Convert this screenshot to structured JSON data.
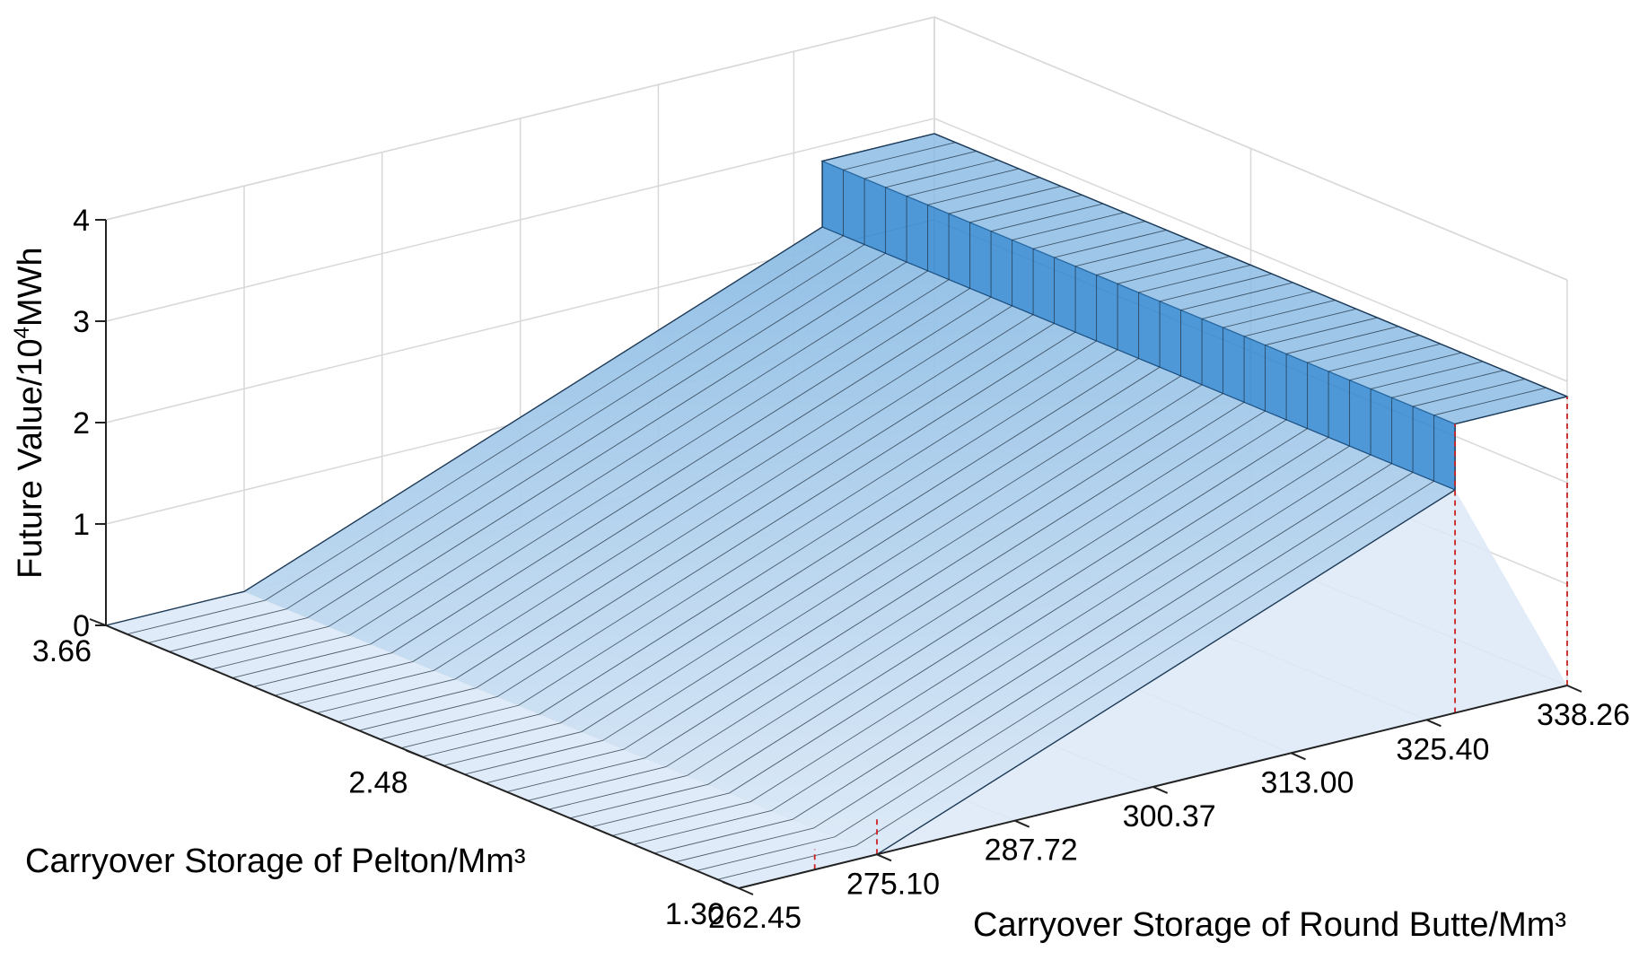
{
  "chart_data": {
    "type": "surface",
    "title": "",
    "xlabel": "Carryover Storage of Round Butte/Mm³",
    "ylabel": "Carryover Storage of Pelton/Mm³",
    "zlabel_base": "Future Value/10",
    "zlabel_sup": "4",
    "zlabel_tail": "MWh",
    "x_ticks": [
      "262.45",
      "275.10",
      "287.72",
      "300.37",
      "313.00",
      "325.40",
      "338.26"
    ],
    "x_tick_values": [
      262.45,
      275.1,
      287.72,
      300.37,
      313.0,
      325.4,
      338.26
    ],
    "y_ticks": [
      "1.30",
      "2.48",
      "3.66"
    ],
    "y_tick_values": [
      1.3,
      2.48,
      3.66
    ],
    "z_ticks": [
      "0",
      "1",
      "2",
      "3",
      "4"
    ],
    "z_tick_values": [
      0,
      1,
      2,
      3,
      4
    ],
    "xlim": [
      262.45,
      338.26
    ],
    "ylim": [
      1.3,
      3.66
    ],
    "zlim": [
      0,
      4
    ],
    "grid": true,
    "surface": {
      "x_breakpoints": [
        262.45,
        275.1,
        328.0,
        338.26
      ],
      "z_profile": [
        0.0,
        0.0,
        2.2,
        2.2
      ],
      "step_at_x": 328.0,
      "step_top": 2.85,
      "y_range": [
        1.3,
        3.66
      ]
    },
    "colors": {
      "surface_light": "#dce9f7",
      "surface_mid": "#8cbce4",
      "surface_dark": "#2f86d0",
      "drop_line": "#cc2222",
      "grid": "#d8d8d8"
    }
  }
}
